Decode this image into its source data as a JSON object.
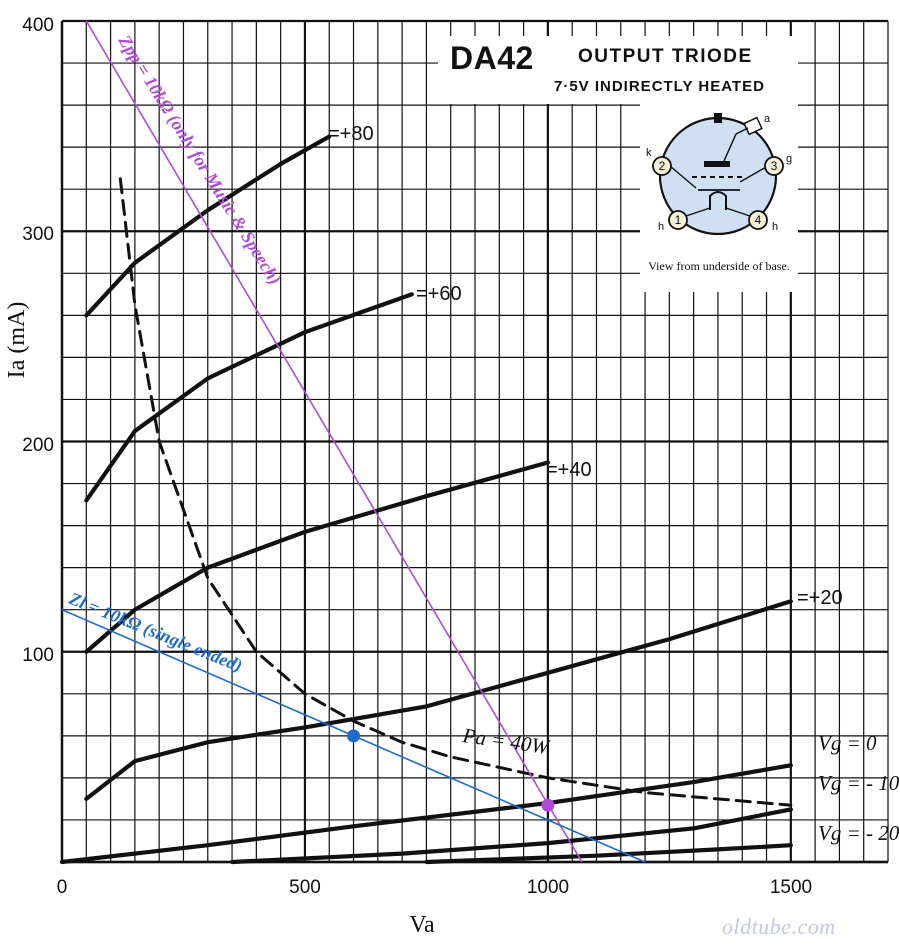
{
  "chart_data": {
    "type": "line",
    "xlabel": "Va",
    "ylabel": "Ia (mA)",
    "xlim": [
      0,
      1700
    ],
    "ylim": [
      0,
      400
    ],
    "x_ticks": [
      "0",
      "500",
      "1000",
      "1500"
    ],
    "y_ticks": [
      "100",
      "200",
      "300",
      "400"
    ],
    "grid": true,
    "series": [
      {
        "name": "=+80",
        "x": [
          50,
          150,
          300,
          450,
          550
        ],
        "y": [
          260,
          285,
          310,
          332,
          345
        ]
      },
      {
        "name": "=+60",
        "x": [
          50,
          150,
          300,
          500,
          720
        ],
        "y": [
          172,
          205,
          230,
          252,
          270
        ]
      },
      {
        "name": "=+40",
        "x": [
          50,
          150,
          300,
          500,
          750,
          1000
        ],
        "y": [
          100,
          120,
          140,
          157,
          174,
          190
        ]
      },
      {
        "name": "=+20",
        "x": [
          50,
          150,
          300,
          500,
          750,
          1000,
          1250,
          1500
        ],
        "y": [
          30,
          48,
          57,
          64,
          74,
          90,
          106,
          124
        ]
      },
      {
        "name": "Vg = 0",
        "x": [
          0,
          300,
          600,
          1000,
          1300,
          1500
        ],
        "y": [
          0,
          8,
          17,
          28,
          38,
          46
        ]
      },
      {
        "name": "Vg = -10",
        "x": [
          350,
          700,
          1000,
          1300,
          1500
        ],
        "y": [
          0,
          4,
          9,
          16,
          25
        ]
      },
      {
        "name": "Vg = -20",
        "x": [
          750,
          1100,
          1350,
          1500
        ],
        "y": [
          0,
          3,
          6,
          8
        ]
      },
      {
        "name": "Pa = 40W",
        "x": [
          120,
          150,
          200,
          300,
          400,
          500,
          600,
          700,
          800,
          1000,
          1200,
          1400,
          1500
        ],
        "y": [
          325,
          265,
          200,
          135,
          100,
          80,
          67,
          57,
          50,
          40,
          33,
          29,
          27
        ]
      }
    ],
    "load_lines": [
      {
        "name": "Zpp = 10kΩ (only for Music & Speech)",
        "x": [
          50,
          1070
        ],
        "y": [
          400,
          0
        ]
      },
      {
        "name": "Zl = 10kΩ (single ended)",
        "x": [
          0,
          1200
        ],
        "y": [
          120,
          0
        ]
      }
    ],
    "operating_points": [
      {
        "x": 600,
        "y": 60
      },
      {
        "x": 1000,
        "y": 27
      }
    ],
    "colors": {
      "curve": "#111111",
      "grid": "#111111",
      "zpp_line": "#b04ad8",
      "zl_line": "#1e6bd0"
    }
  },
  "labels": {
    "curve_80": "=+80",
    "curve_60": "=+60",
    "curve_40": "=+40",
    "curve_20": "=+20",
    "vg0": "Vg = 0",
    "vg10": "Vg = - 10",
    "vg20": "Vg = - 20",
    "pa": "Pa = 40W",
    "zpp": "Zpp = 10kΩ (only for Music & Speech)",
    "zl": "Zl = 10kΩ (single ended)",
    "ylabel": "Ia (mA)",
    "xlabel": "Va"
  },
  "tube": {
    "name": "DA42",
    "type": "OUTPUT TRIODE",
    "heater": "7·5V INDIRECTLY HEATED",
    "caption": "View from underside of base.",
    "pins": [
      "1",
      "2",
      "3",
      "4"
    ],
    "pin_letters": [
      "a",
      "k",
      "g",
      "h",
      "h"
    ]
  },
  "watermark": "oldtube.com"
}
